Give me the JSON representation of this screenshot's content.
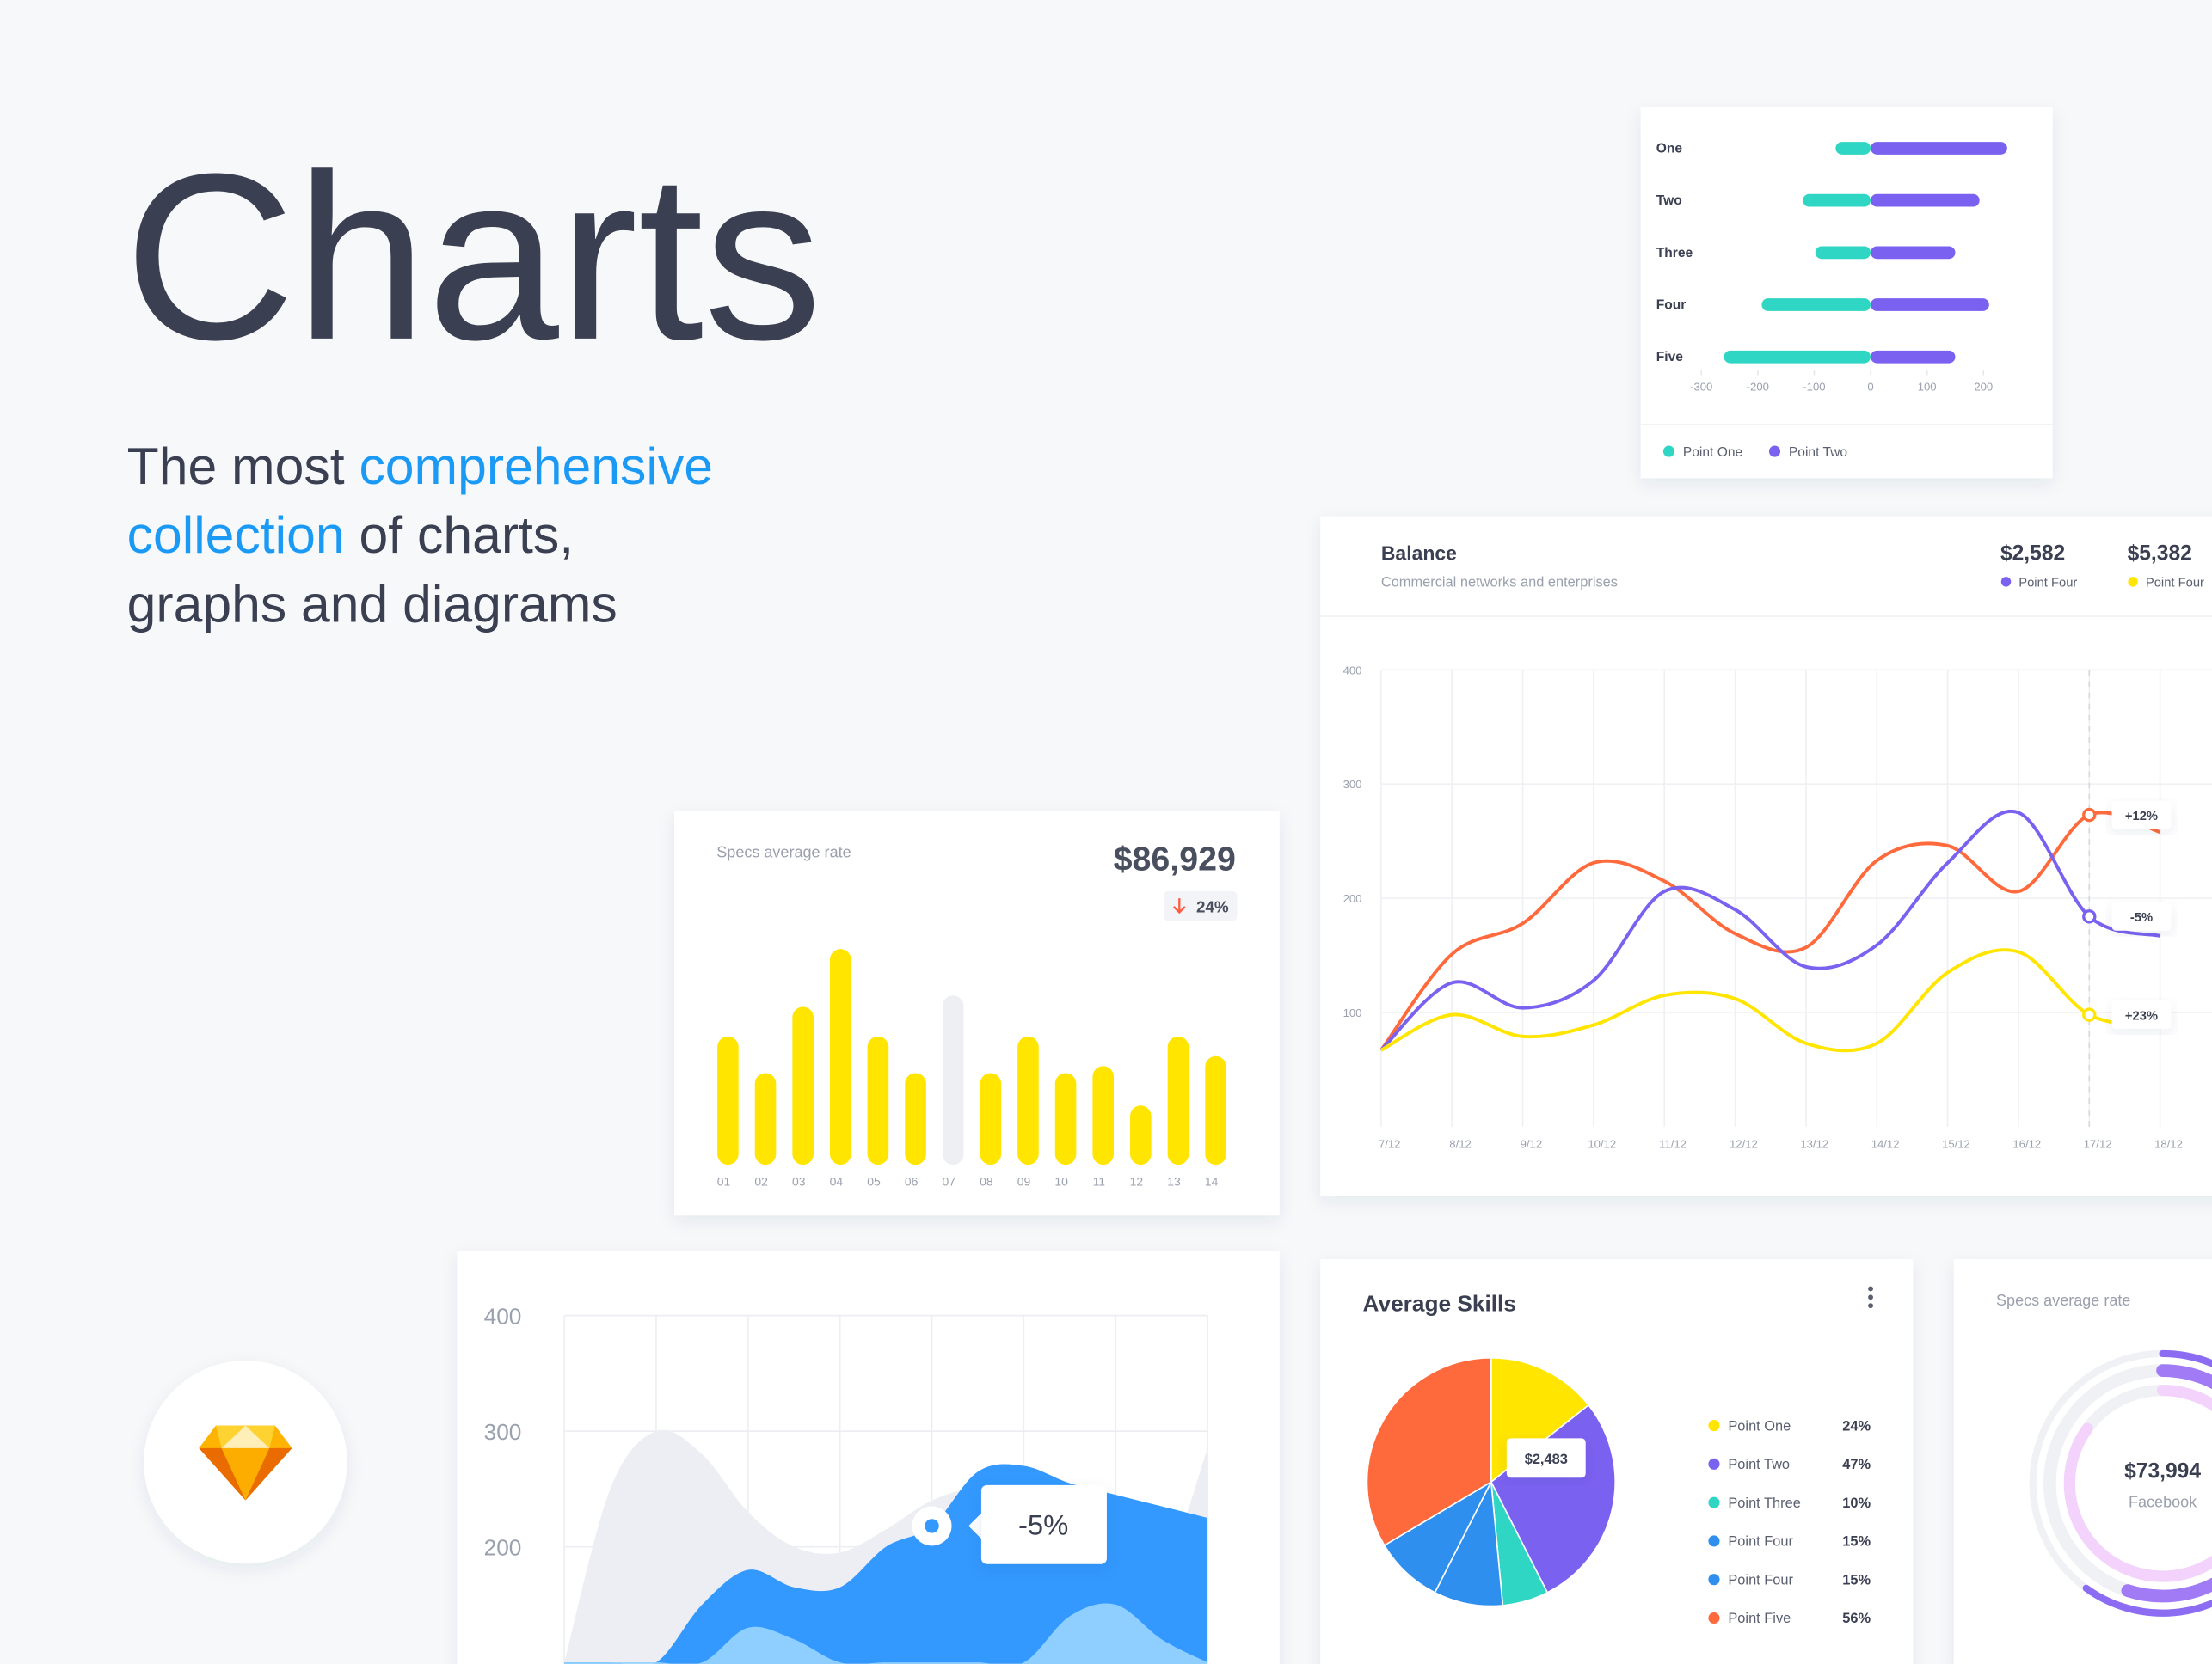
{
  "header": {
    "title": "Charts",
    "subtitle": [
      "The most ",
      "comprehensive",
      "collection",
      " of charts,",
      "graphs and diagrams"
    ]
  },
  "chart_data": [
    {
      "type": "hbar",
      "categories": [
        "One",
        "Two",
        "Three",
        "Four",
        "Five"
      ],
      "series": [
        {
          "name": "Point One",
          "color": "#2fd6c3",
          "values": [
            -62,
            -120,
            -98,
            -193,
            -260
          ]
        },
        {
          "name": "Point Two",
          "color": "#7b61f0",
          "values": [
            242,
            193,
            150,
            210,
            150
          ]
        }
      ],
      "xlim": [
        -300,
        300
      ],
      "xticks": [
        -300,
        -200,
        -100,
        0,
        100,
        200
      ]
    },
    {
      "type": "bar",
      "title": "Specs average rate",
      "value_text": "$86,929",
      "change": "24%",
      "categories": [
        "01",
        "02",
        "03",
        "04",
        "05",
        "06",
        "07",
        "08",
        "09",
        "10",
        "11",
        "12",
        "13",
        "14"
      ],
      "values": [
        91,
        65,
        112,
        153,
        91,
        65,
        120,
        65,
        91,
        65,
        70,
        42,
        91,
        77
      ],
      "colors": [
        "#ffe500",
        "#ffe500",
        "#ffe500",
        "#ffe500",
        "#ffe500",
        "#ffe500",
        "#eeeff3",
        "#ffe500",
        "#ffe500",
        "#ffe500",
        "#ffe500",
        "#ffe500",
        "#ffe500",
        "#ffe500"
      ],
      "ylim": [
        0,
        160
      ]
    },
    {
      "type": "line",
      "title": "Balance",
      "subtitle": "Commercial networks and enterprises",
      "stats": [
        {
          "value": "$2,582",
          "label": "Point Four",
          "color": "#7b61f0"
        },
        {
          "value": "$5,382",
          "label": "Point Four",
          "color": "#ffe500"
        }
      ],
      "categories": [
        "7/12",
        "8/12",
        "9/12",
        "10/12",
        "11/12",
        "12/12",
        "13/12",
        "14/12",
        "15/12",
        "16/12",
        "17/12",
        "18/12"
      ],
      "series": [
        {
          "color": "#ff6a3d",
          "values": [
            67,
            151,
            178,
            231,
            215,
            169,
            157,
            233,
            246,
            206,
            273,
            258
          ]
        },
        {
          "color": "#7b61f0",
          "values": [
            67,
            126,
            104,
            128,
            206,
            190,
            140,
            159,
            231,
            275,
            184,
            167
          ]
        },
        {
          "color": "#ffe500",
          "values": [
            67,
            98,
            79,
            89,
            115,
            112,
            73,
            73,
            135,
            153,
            98,
            88
          ]
        }
      ],
      "annotations": [
        "+12%",
        "-5%",
        "+23%"
      ],
      "ylim": [
        0,
        400
      ],
      "yticks": [
        100,
        200,
        300,
        400
      ],
      "grid": true
    },
    {
      "type": "area",
      "categories": [
        null,
        null,
        null,
        null,
        null,
        null,
        null,
        null,
        null,
        null,
        null,
        null,
        null,
        null,
        null
      ],
      "series": [
        {
          "color": "#eceef3",
          "values": [
            100,
            250,
            300,
            280,
            230,
            200,
            195,
            215,
            240,
            250,
            235,
            230,
            220,
            180,
            285
          ]
        },
        {
          "color": "#3399ff",
          "values": [
            100,
            100,
            100,
            150,
            180,
            165,
            165,
            200,
            218,
            265,
            270,
            255,
            245,
            235,
            225
          ]
        },
        {
          "color": "#8ecfff",
          "values": [
            100,
            100,
            100,
            100,
            130,
            120,
            100,
            100,
            100,
            100,
            100,
            140,
            150,
            120,
            100
          ]
        }
      ],
      "annotation": "-5%",
      "ylim": [
        100,
        400
      ],
      "yticks": [
        200,
        300,
        400
      ],
      "grid": true
    },
    {
      "type": "pie",
      "title": "Average Skills",
      "categories": [
        "Point One",
        "Point Two",
        "Point Three",
        "Point Four",
        "Point Four",
        "Point Five"
      ],
      "values": [
        24,
        47,
        10,
        15,
        15,
        56
      ],
      "value_labels": [
        "24%",
        "47%",
        "10%",
        "15%",
        "15%",
        "56%"
      ],
      "colors": [
        "#ffe500",
        "#7b61f0",
        "#2fd6c3",
        "#2f8fef",
        "#2f8fef",
        "#ff6a3d"
      ],
      "annotation": "$2,483"
    },
    {
      "type": "radial",
      "title": "Specs average rate",
      "value_text": "$73,994",
      "label": "Facebook",
      "values": [
        60,
        55,
        85
      ],
      "colors": [
        "#8b6cf2",
        "#a17bf5",
        "#f3d3fb"
      ]
    }
  ]
}
